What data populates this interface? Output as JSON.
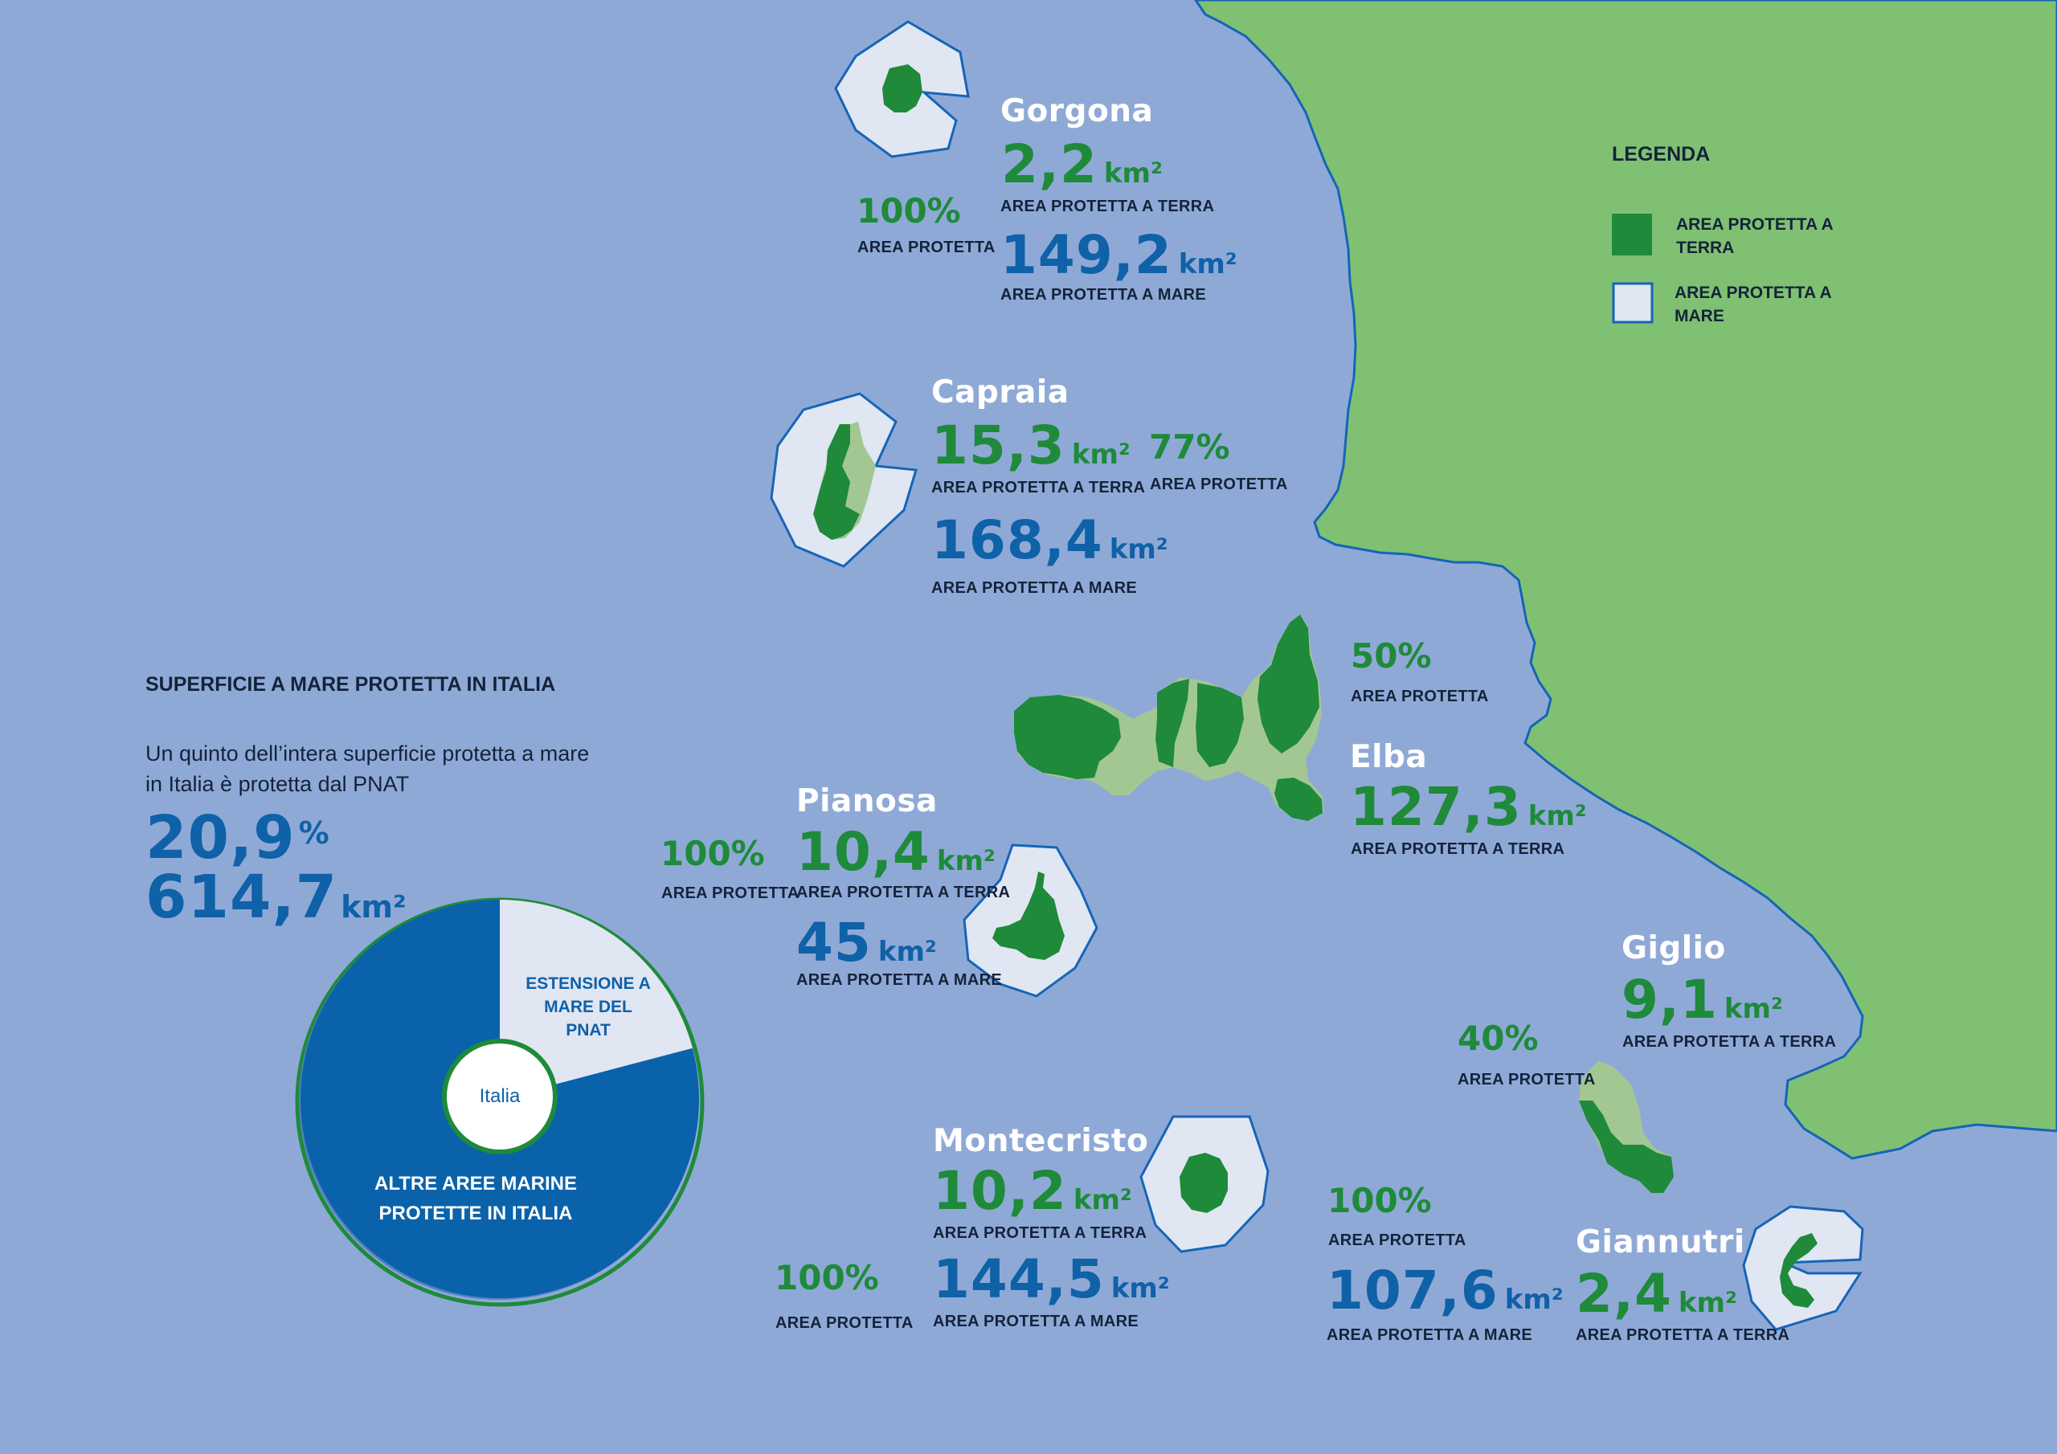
{
  "legend": {
    "title": "LEGENDA",
    "items": [
      {
        "label": "AREA PROTETTA A TERRA",
        "color": "#1e8a3a"
      },
      {
        "label": "AREA PROTETTA A MARE",
        "color": "#e1e6f3"
      }
    ]
  },
  "islands": {
    "gorgona": {
      "name": "Gorgona",
      "land_value": "2,2",
      "land_unit": "km²",
      "land_caption": "AREA PROTETTA A TERRA",
      "sea_value": "149,2",
      "sea_unit": "km²",
      "sea_caption": "AREA PROTETTA A MARE",
      "pct": "100%",
      "pct_caption": "AREA PROTETTA"
    },
    "capraia": {
      "name": "Capraia",
      "land_value": "15,3",
      "land_unit": "km²",
      "land_caption": "AREA PROTETTA A TERRA",
      "sea_value": "168,4",
      "sea_unit": "km²",
      "sea_caption": "AREA PROTETTA A MARE",
      "pct": "77%",
      "pct_caption": "AREA PROTETTA"
    },
    "elba": {
      "name": "Elba",
      "land_value": "127,3",
      "land_unit": "km²",
      "land_caption": "AREA PROTETTA A TERRA",
      "pct": "50%",
      "pct_caption": "AREA PROTETTA"
    },
    "pianosa": {
      "name": "Pianosa",
      "land_value": "10,4",
      "land_unit": "km²",
      "land_caption": "AREA PROTETTA A TERRA",
      "sea_value": "45",
      "sea_unit": "km²",
      "sea_caption": "AREA PROTETTA A MARE",
      "pct": "100%",
      "pct_caption": "AREA PROTETTA"
    },
    "giglio": {
      "name": "Giglio",
      "land_value": "9,1",
      "land_unit": "km²",
      "land_caption": "AREA PROTETTA A TERRA",
      "pct": "40%",
      "pct_caption": "AREA PROTETTA"
    },
    "montecristo": {
      "name": "Montecristo",
      "land_value": "10,2",
      "land_unit": "km²",
      "land_caption": "AREA PROTETTA A TERRA",
      "sea_value": "144,5",
      "sea_unit": "km²",
      "sea_caption": "AREA PROTETTA A MARE",
      "pct": "100%",
      "pct_caption": "AREA PROTETTA"
    },
    "giannutri": {
      "name": "Giannutri",
      "land_value": "2,4",
      "land_unit": "km²",
      "land_caption": "AREA PROTETTA A TERRA",
      "sea_value": "107,6",
      "sea_unit": "km²",
      "sea_caption": "AREA PROTETTA A MARE",
      "pct": "100%",
      "pct_caption": "AREA PROTETTA"
    }
  },
  "italy_panel": {
    "title": "SUPERFICIE A MARE PROTETTA IN ITALIA",
    "description": "Un quinto dell’intera superficie protetta a mare in Italia è protetta dal PNAT",
    "percent_value": "20,9",
    "percent_unit": "%",
    "area_value": "614,7",
    "area_unit": "km²"
  },
  "chart_data": {
    "type": "pie",
    "center_label": "Italia",
    "slices": [
      {
        "label": "ESTENSIONE A MARE DEL PNAT",
        "value": 20.9,
        "color": "#e1e6f3"
      },
      {
        "label": "ALTRE AREE MARINE PROTETTE IN ITALIA",
        "value": 79.1,
        "color": "#0a62ab"
      }
    ]
  }
}
